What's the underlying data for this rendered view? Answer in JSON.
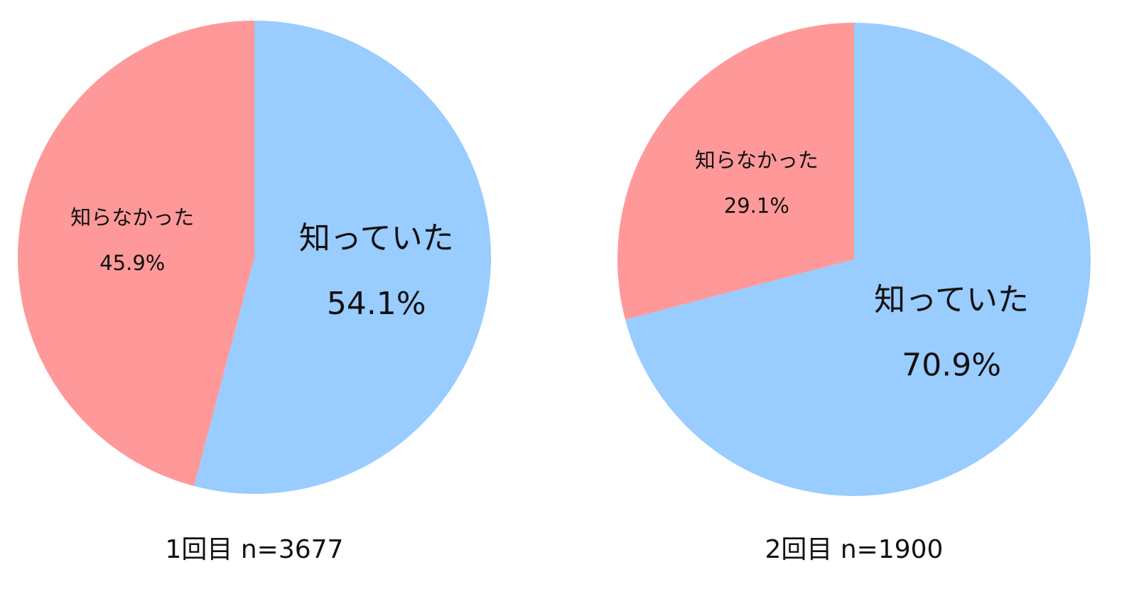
{
  "chart_data": [
    {
      "type": "pie",
      "title": "1回目 n=3677",
      "categories": [
        "知っていた",
        "知らなかった"
      ],
      "values": [
        54.1,
        45.9
      ],
      "value_labels": [
        "54.1%",
        "45.9%"
      ],
      "colors": [
        "#99ccff",
        "#ff9999"
      ]
    },
    {
      "type": "pie",
      "title": "2回目 n=1900",
      "categories": [
        "知っていた",
        "知らなかった"
      ],
      "values": [
        70.9,
        29.1
      ],
      "value_labels": [
        "70.9%",
        "29.1%"
      ],
      "colors": [
        "#99ccff",
        "#ff9999"
      ]
    }
  ]
}
